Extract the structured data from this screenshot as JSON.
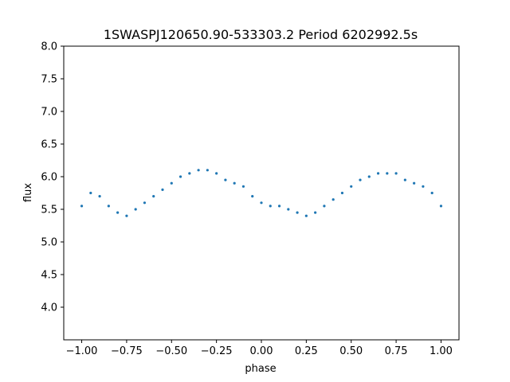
{
  "chart_data": {
    "type": "scatter",
    "title": "1SWASPJ120650.90-533303.2 Period 6202992.5s",
    "xlabel": "phase",
    "ylabel": "flux",
    "xlim": [
      -1.1,
      1.1
    ],
    "ylim": [
      3.5,
      8.0
    ],
    "x_ticks": [
      -1.0,
      -0.75,
      -0.5,
      -0.25,
      0.0,
      0.25,
      0.5,
      0.75,
      1.0
    ],
    "x_tick_labels": [
      "−1.00",
      "−0.75",
      "−0.50",
      "−0.25",
      "0.00",
      "0.25",
      "0.50",
      "0.75",
      "1.00"
    ],
    "y_ticks": [
      4.0,
      4.5,
      5.0,
      5.5,
      6.0,
      6.5,
      7.0,
      7.5,
      8.0
    ],
    "y_tick_labels": [
      "4.0",
      "4.5",
      "5.0",
      "5.5",
      "6.0",
      "6.5",
      "7.0",
      "7.5",
      "8.0"
    ],
    "grid": false,
    "point_color": "#1f77b4",
    "series": [
      {
        "x": [
          -1.0,
          -0.95,
          -0.9,
          -0.85,
          -0.8,
          -0.75,
          -0.7,
          -0.65,
          -0.6,
          -0.55,
          -0.5,
          -0.45,
          -0.4,
          -0.35,
          -0.3,
          -0.25,
          -0.2,
          -0.15,
          -0.1,
          -0.05,
          0.0,
          0.05,
          0.1,
          0.15,
          0.2,
          0.25,
          0.3,
          0.35,
          0.4,
          0.45,
          0.5,
          0.55,
          0.6,
          0.65,
          0.7,
          0.75,
          0.8,
          0.85,
          0.9,
          0.95,
          1.0
        ],
        "y": [
          5.55,
          5.75,
          5.7,
          5.55,
          5.45,
          5.4,
          5.5,
          5.6,
          5.7,
          5.8,
          5.9,
          6.0,
          6.05,
          6.1,
          6.1,
          6.05,
          5.95,
          5.9,
          5.85,
          5.7,
          5.6,
          5.55,
          5.55,
          5.5,
          5.45,
          5.4,
          5.45,
          5.55,
          5.65,
          5.75,
          5.85,
          5.95,
          6.0,
          6.05,
          6.05,
          6.05,
          5.95,
          5.9,
          5.85,
          5.75,
          5.55
        ]
      }
    ]
  }
}
